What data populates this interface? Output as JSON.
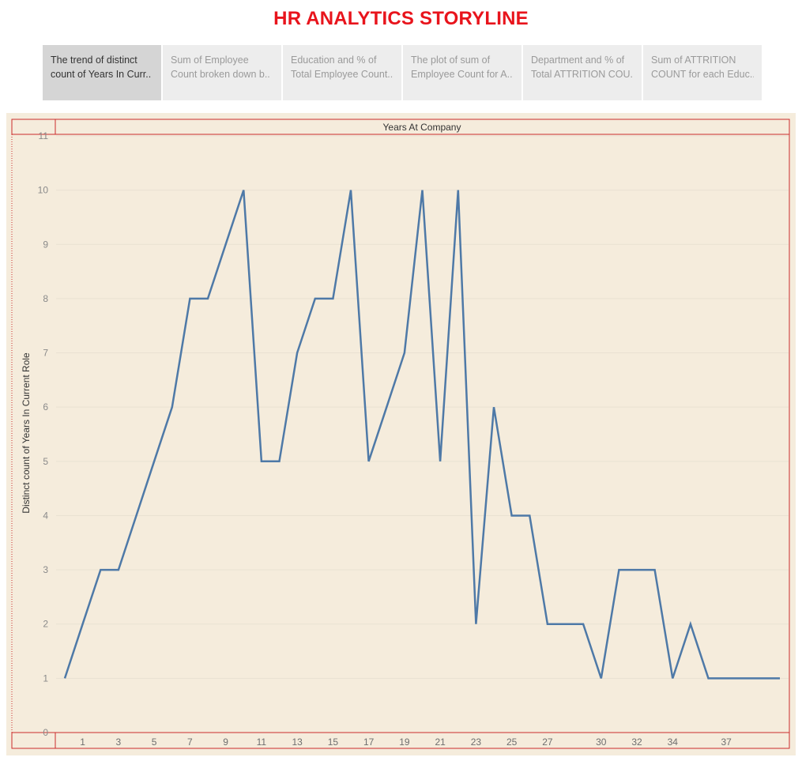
{
  "page_title": "HR ANALYTICS STORYLINE",
  "tabs": [
    {
      "line1": "The trend of distinct",
      "line2": "count of Years In Curr..",
      "active": true
    },
    {
      "line1": "Sum of Employee",
      "line2": "Count broken down b..",
      "active": false
    },
    {
      "line1": "Education and % of",
      "line2": "Total Employee Count..",
      "active": false
    },
    {
      "line1": "The plot of sum of",
      "line2": "Employee Count for A..",
      "active": false
    },
    {
      "line1": "Department and % of",
      "line2": "Total ATTRITION COU..",
      "active": false
    },
    {
      "line1": "Sum of ATTRITION",
      "line2": "COUNT for each Educ..",
      "active": false
    }
  ],
  "colors": {
    "title": "#e8141c",
    "line": "#4e79a7",
    "panel_bg": "#f5ecdc",
    "frame": "#cc2b2b"
  },
  "chart_data": {
    "type": "line",
    "header": "Years At Company",
    "ylabel": "Distinct count of Years In Current Role",
    "x": [
      0,
      1,
      2,
      3,
      4,
      5,
      6,
      7,
      8,
      9,
      10,
      11,
      12,
      13,
      14,
      15,
      16,
      17,
      18,
      19,
      20,
      21,
      22,
      23,
      24,
      25,
      26,
      27,
      29,
      30,
      31,
      32,
      33,
      34,
      35,
      36,
      37,
      40
    ],
    "y": [
      1,
      2,
      3,
      3,
      4,
      5,
      6,
      8,
      8,
      9,
      10,
      5,
      5,
      7,
      8,
      8,
      10,
      5,
      6,
      7,
      10,
      5,
      10,
      2,
      6,
      4,
      4,
      2,
      2,
      1,
      3,
      3,
      3,
      1,
      2,
      1,
      1,
      1
    ],
    "x_tick_labels": [
      "1",
      "3",
      "5",
      "7",
      "9",
      "11",
      "13",
      "15",
      "17",
      "19",
      "21",
      "23",
      "25",
      "27",
      "30",
      "32",
      "34",
      "37"
    ],
    "x_tick_values": [
      1,
      3,
      5,
      7,
      9,
      11,
      13,
      15,
      17,
      19,
      21,
      23,
      25,
      27,
      30,
      32,
      34,
      37
    ],
    "yticks": [
      0,
      1,
      2,
      3,
      4,
      5,
      6,
      7,
      8,
      9,
      10,
      11
    ],
    "ylim": [
      0,
      11
    ],
    "grid": "horizontal"
  }
}
